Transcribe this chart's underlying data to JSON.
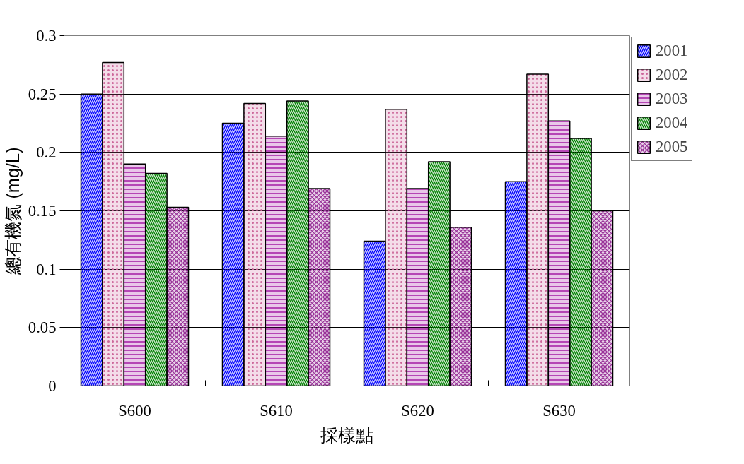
{
  "chart_data": {
    "type": "bar",
    "xlabel": "採樣點",
    "ylabel": "總有機氮 (mg/L)",
    "categories": [
      "S600",
      "S610",
      "S620",
      "S630"
    ],
    "series": [
      {
        "name": "2001",
        "color": "#0000ff",
        "values": [
          0.25,
          0.225,
          0.124,
          0.175
        ]
      },
      {
        "name": "2002",
        "color": "#cc6699",
        "values": [
          0.277,
          0.242,
          0.237,
          0.267
        ]
      },
      {
        "name": "2003",
        "color": "#990099",
        "values": [
          0.19,
          0.214,
          0.169,
          0.227
        ]
      },
      {
        "name": "2004",
        "color": "#008000",
        "values": [
          0.182,
          0.244,
          0.192,
          0.212
        ]
      },
      {
        "name": "2005",
        "color": "#993399",
        "values": [
          0.153,
          0.169,
          0.136,
          0.15
        ]
      }
    ],
    "ylim": [
      0,
      0.3
    ],
    "yticks": [
      0,
      0.05,
      0.1,
      0.15,
      0.2,
      0.25,
      0.3
    ],
    "grid": "y",
    "legend": "top right"
  }
}
